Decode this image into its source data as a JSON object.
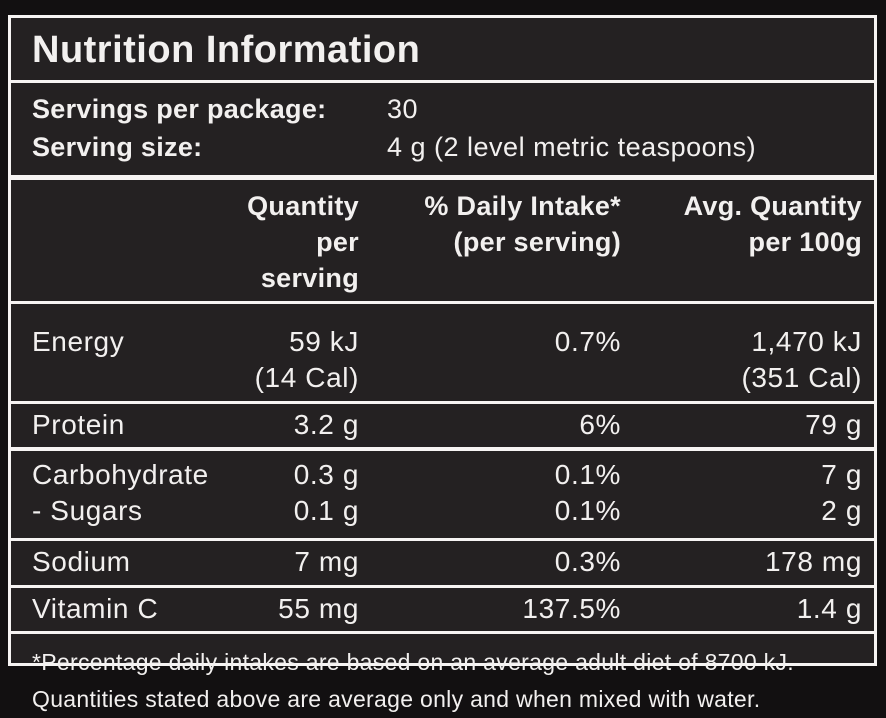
{
  "panel": {
    "title": "Nutrition Information",
    "serving_info": [
      {
        "label": "Servings per package:",
        "value": "30"
      },
      {
        "label": "Serving size:",
        "value": "4 g (2 level metric teaspoons)"
      }
    ],
    "columns": {
      "col2_line1": "Quantity",
      "col2_line2": "per serving",
      "col3_line1": "% Daily Intake*",
      "col3_line2": "(per serving)",
      "col4_line1": "Avg. Quantity",
      "col4_line2": "per 100g"
    },
    "rows": [
      {
        "name": "Energy",
        "qty": "59 kJ",
        "qty2": "(14 Cal)",
        "daily_intake": "0.7%",
        "per100": "1,470 kJ",
        "per100_2": "(351 Cal)"
      },
      {
        "name": "Protein",
        "qty": "3.2 g",
        "daily_intake": "6%",
        "per100": "79 g"
      },
      {
        "name": "Carbohydrate",
        "qty": "0.3 g",
        "daily_intake": "0.1%",
        "per100": "7 g"
      },
      {
        "name": "- Sugars",
        "qty": "0.1 g",
        "daily_intake": "0.1%",
        "per100": "2 g"
      },
      {
        "name": "Sodium",
        "qty": "7 mg",
        "daily_intake": "0.3%",
        "per100": "178 mg"
      },
      {
        "name": "Vitamin C",
        "qty": "55 mg",
        "daily_intake": "137.5%",
        "per100": "1.4 g"
      }
    ],
    "footnote_line1": "*Percentage daily intakes are based on an average adult diet of 8700 kJ.",
    "footnote_line2": "Quantities stated above are average only and when mixed with water.",
    "colors": {
      "background_outer": "#121011",
      "background_panel": "#242122",
      "text": "#f2f0ef",
      "rule": "#f6f4f3"
    }
  }
}
